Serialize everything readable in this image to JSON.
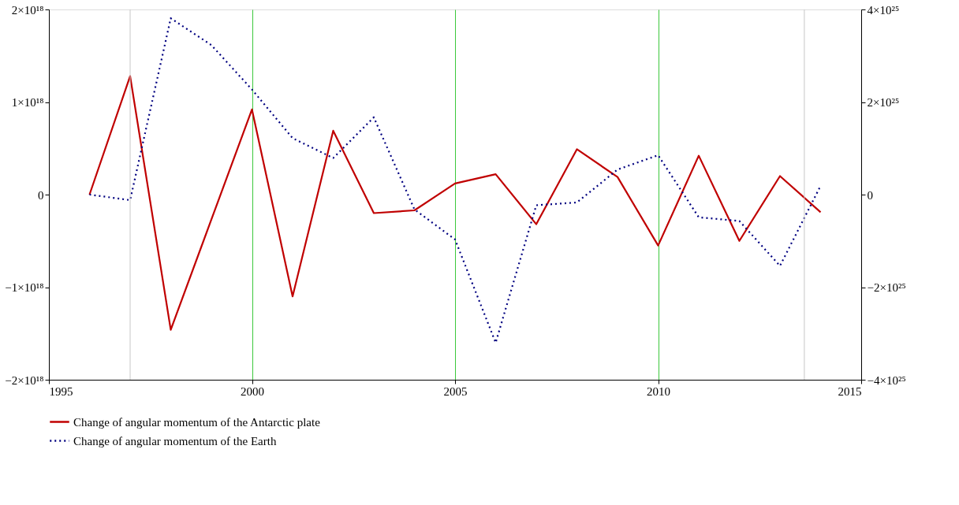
{
  "chart_data": {
    "type": "line",
    "x": [
      1996,
      1997,
      1998,
      1999,
      2000,
      2001,
      2002,
      2003,
      2004,
      2005,
      2006,
      2007,
      2008,
      2009,
      2010,
      2011,
      2012,
      2013,
      2014
    ],
    "series": [
      {
        "name": "Change of angular momentum of the Antarctic plate",
        "color": "#c00000",
        "line_style": "solid",
        "values": [
          0,
          1.28e+18,
          -1.46e+18,
          -2.7e+17,
          9.2e+17,
          -1.1e+18,
          6.9e+17,
          -2e+17,
          -1.7e+17,
          1.2e+17,
          2.2e+17,
          -3.2e+17,
          4.9e+17,
          1.9e+17,
          -5.5e+17,
          4.2e+17,
          -5e+17,
          2e+17,
          -1.9e+17
        ]
      },
      {
        "name": "Change of angular momentum of the Earth",
        "color": "#000080",
        "line_style": "dotted",
        "axis": "y2",
        "values": [
          0,
          -1.2e+24,
          3.81e+25,
          3.23e+25,
          2.27e+25,
          1.22e+25,
          7.9e+24,
          1.67e+25,
          -3.2e+24,
          -9.7e+24,
          -3.2e+25,
          -2.3e+24,
          -1.7e+24,
          5.4e+24,
          8.5e+24,
          -4.9e+24,
          -5.7e+24,
          -1.54e+25,
          1.9e+24
        ]
      }
    ],
    "xlim": [
      1995,
      2015
    ],
    "xticks": [
      1995,
      2000,
      2005,
      2010,
      2015
    ],
    "ylim": [
      -2e+18,
      2e+18
    ],
    "yticks": [
      {
        "value": -2e+18,
        "label": "−2×10¹⁸"
      },
      {
        "value": -1e+18,
        "label": "−1×10¹⁸"
      },
      {
        "value": 0,
        "label": "0"
      },
      {
        "value": 1e+18,
        "label": "1×10¹⁸"
      },
      {
        "value": 2e+18,
        "label": "2×10¹⁸"
      }
    ],
    "y2lim": [
      -4e+25,
      4e+25
    ],
    "y2ticks": [
      {
        "value": -4e+25,
        "label": "−4×10²⁵"
      },
      {
        "value": -2e+25,
        "label": "−2×10²⁵"
      },
      {
        "value": 0,
        "label": "0"
      },
      {
        "value": 2e+25,
        "label": "2×10²⁵"
      },
      {
        "value": 4e+25,
        "label": "4×10²⁵"
      }
    ],
    "ref_lines": [
      {
        "axis": "x",
        "value": 1997,
        "color": "#c8c8c8"
      },
      {
        "axis": "x",
        "value": 2013.6,
        "color": "#c8c8c8"
      }
    ],
    "grid": "x",
    "legend": "bottom",
    "marker": "none"
  }
}
